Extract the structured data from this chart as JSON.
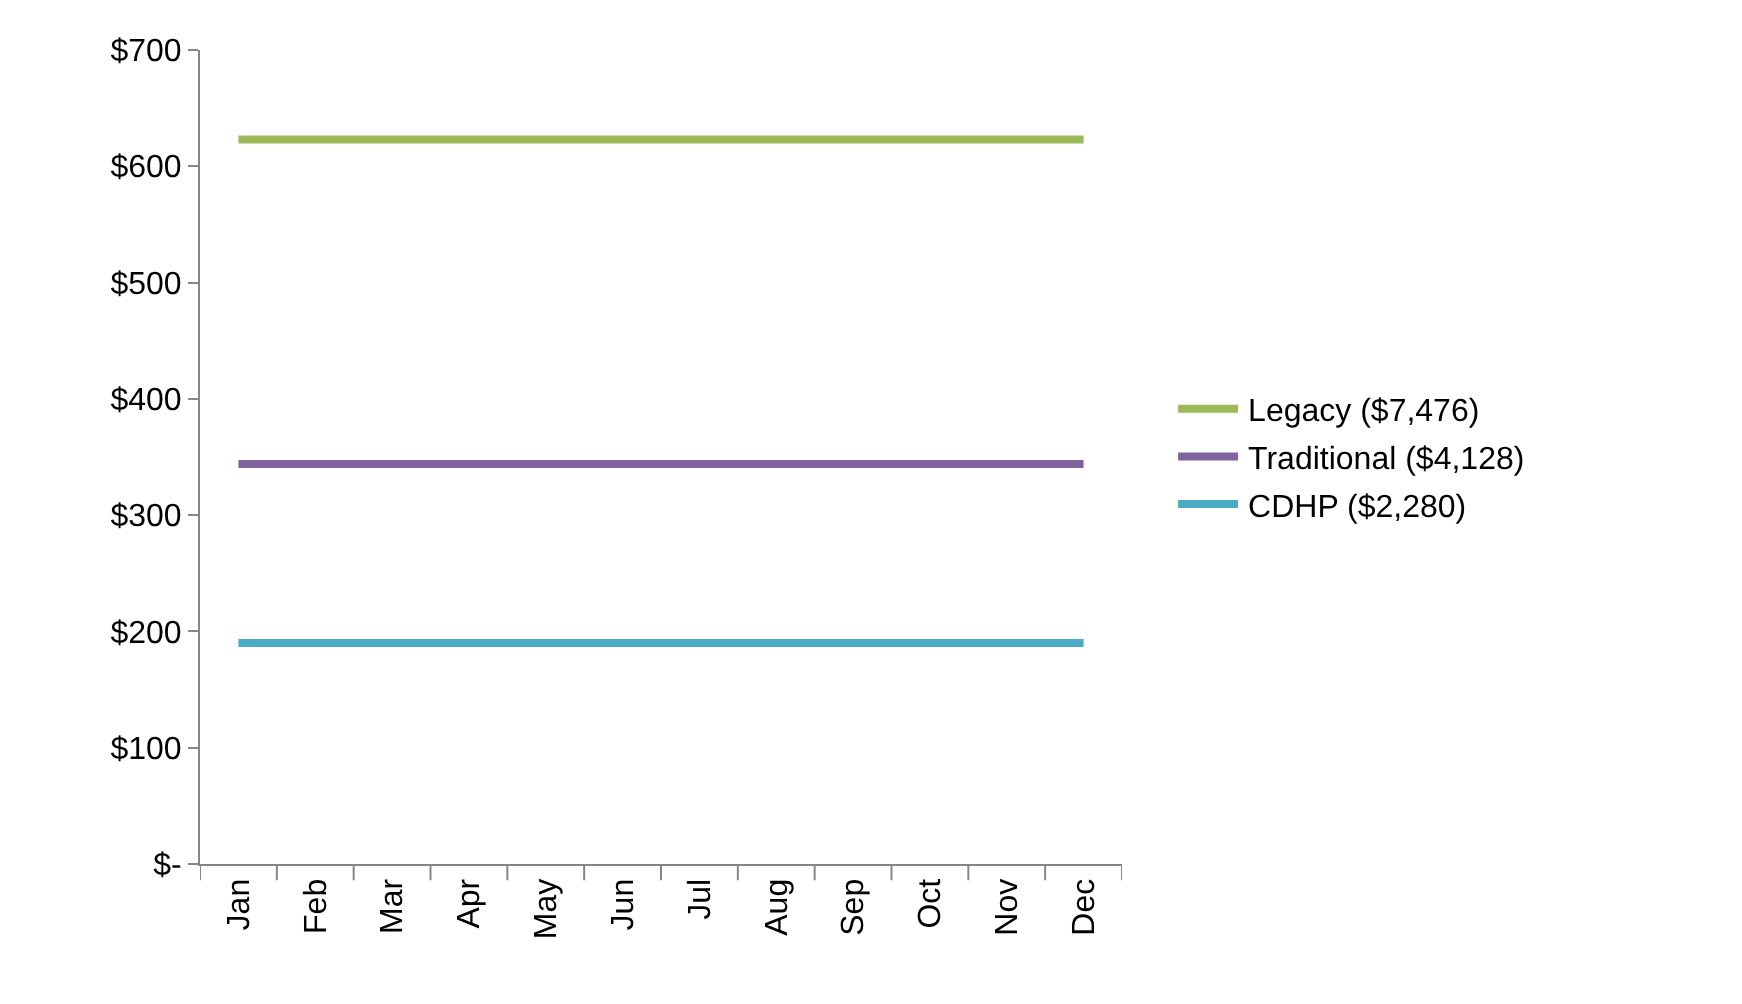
{
  "chart_data": {
    "type": "line",
    "categories": [
      "Jan",
      "Feb",
      "Mar",
      "Apr",
      "May",
      "Jun",
      "Jul",
      "Aug",
      "Sep",
      "Oct",
      "Nov",
      "Dec"
    ],
    "series": [
      {
        "name": "Legacy ($7,476)",
        "color": "#9bbb59",
        "values": [
          623,
          623,
          623,
          623,
          623,
          623,
          623,
          623,
          623,
          623,
          623,
          623
        ]
      },
      {
        "name": "Traditional ($4,128)",
        "color": "#8064a2",
        "values": [
          344,
          344,
          344,
          344,
          344,
          344,
          344,
          344,
          344,
          344,
          344,
          344
        ]
      },
      {
        "name": "CDHP ($2,280)",
        "color": "#4bacc6",
        "values": [
          190,
          190,
          190,
          190,
          190,
          190,
          190,
          190,
          190,
          190,
          190,
          190
        ]
      }
    ],
    "ylim": [
      0,
      700
    ],
    "yticks": [
      {
        "value": 0,
        "label": "$-"
      },
      {
        "value": 100,
        "label": "$100"
      },
      {
        "value": 200,
        "label": "$200"
      },
      {
        "value": 300,
        "label": "$300"
      },
      {
        "value": 400,
        "label": "$400"
      },
      {
        "value": 500,
        "label": "$500"
      },
      {
        "value": 600,
        "label": "$600"
      },
      {
        "value": 700,
        "label": "$700"
      }
    ],
    "legend": "right",
    "marker": "none",
    "line_style": "solid"
  }
}
